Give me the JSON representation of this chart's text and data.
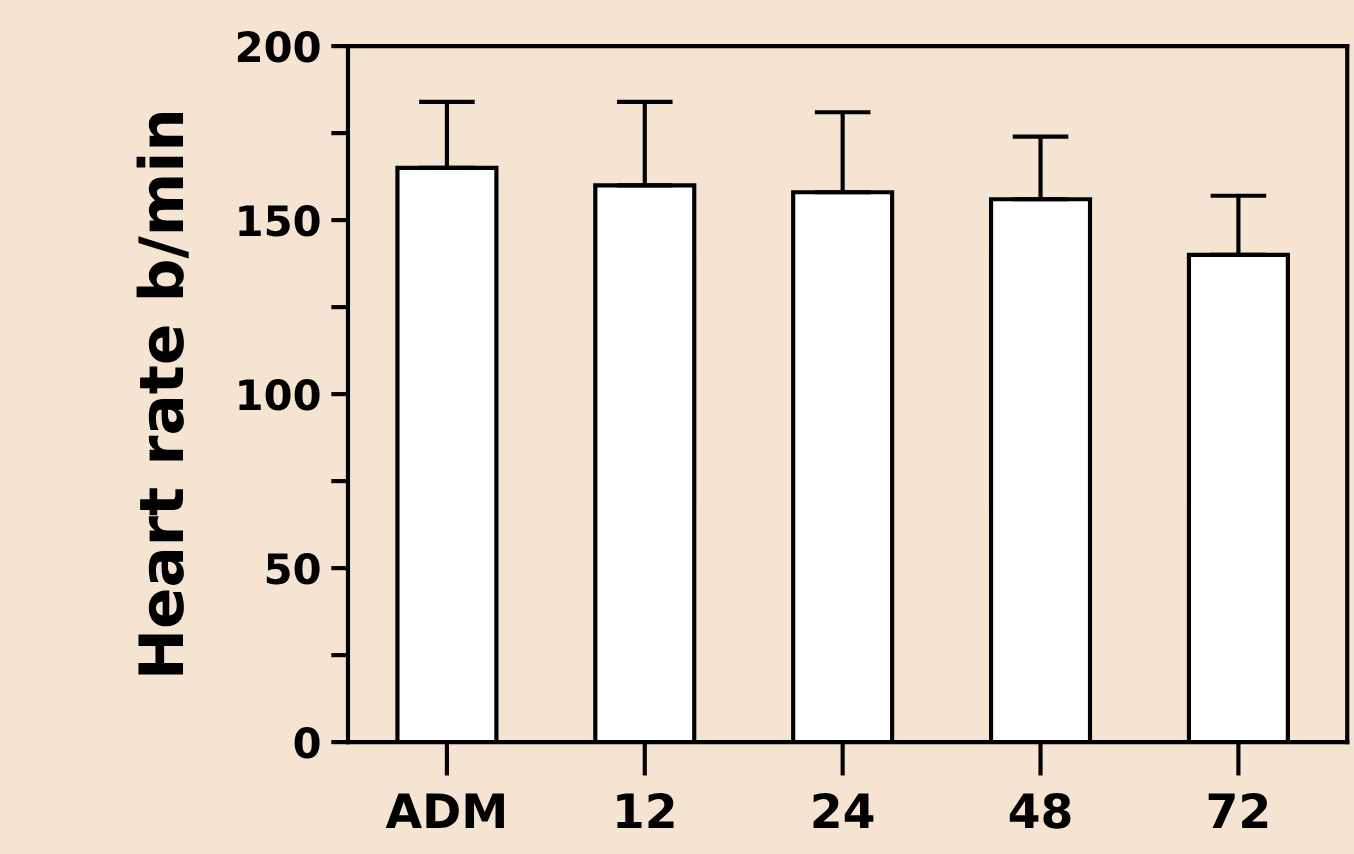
{
  "chart_data": {
    "type": "bar",
    "ylabel": "Heart rate b/min",
    "categories": [
      "ADM",
      "12",
      "24",
      "48",
      "72"
    ],
    "values": [
      165,
      160,
      158,
      156,
      140
    ],
    "errors": [
      [
        165,
        184
      ],
      [
        160,
        184
      ],
      [
        158,
        181
      ],
      [
        156,
        174
      ],
      [
        140,
        157
      ]
    ],
    "color": "#ffffff",
    "ylim": [
      0,
      200
    ],
    "yticks": [
      0,
      {
        "value": 25,
        "label": null
      },
      50,
      {
        "value": 75,
        "label": null
      },
      100,
      {
        "value": 125,
        "label": null
      },
      150,
      {
        "value": 175,
        "label": null
      },
      200
    ],
    "grid": false
  }
}
